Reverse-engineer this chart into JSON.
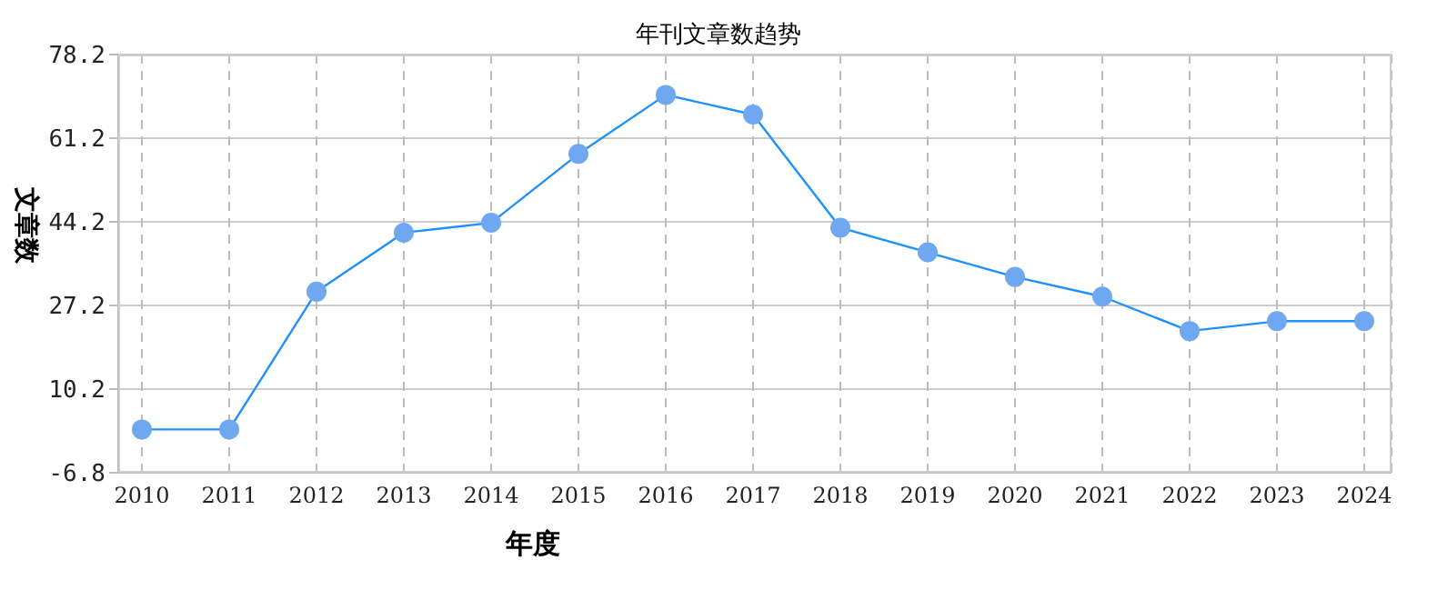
{
  "chart_data": {
    "type": "line",
    "title": "年刊文章数趋势",
    "xlabel": "年度",
    "ylabel": "文章数",
    "categories": [
      "2010",
      "2011",
      "2012",
      "2013",
      "2014",
      "2015",
      "2016",
      "2017",
      "2018",
      "2019",
      "2020",
      "2021",
      "2022",
      "2023",
      "2024"
    ],
    "series": [
      {
        "color": "#1e90ff",
        "values": [
          2,
          2,
          30,
          42,
          44,
          58,
          70,
          66,
          43,
          38,
          33,
          29,
          22,
          24,
          24
        ]
      }
    ],
    "ylim": [
      -6.8,
      78.2
    ],
    "yticks": [
      -6.8,
      10.2,
      27.2,
      44.2,
      61.2,
      78.2
    ],
    "grid": true,
    "marker": "circle",
    "line_style": "solid"
  }
}
